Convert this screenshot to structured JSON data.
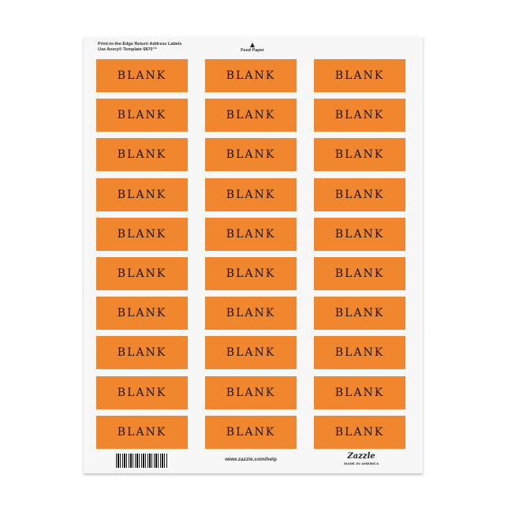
{
  "header": {
    "line1": "Print-to-the-Edge Return Address Labels",
    "line2": "Use Avery® Template 6870™",
    "feed": "Feed Paper"
  },
  "label_color": "#f0862d",
  "labels": {
    "columns": 3,
    "rows": 10,
    "text": "BLANK"
  },
  "footer": {
    "url": "www.zazzle.com/help",
    "logo": "Zazzle",
    "logo_sub": "MADE IN AMERICA"
  }
}
